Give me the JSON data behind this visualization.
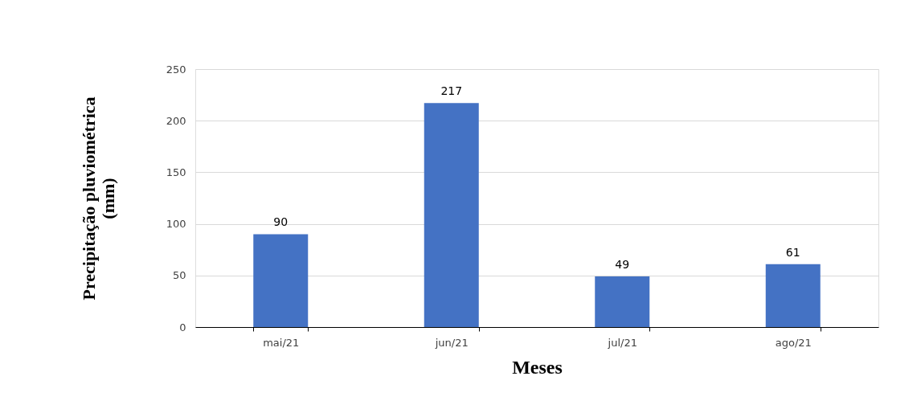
{
  "chart_data": {
    "type": "bar",
    "categories": [
      "mai/21",
      "jun/21",
      "jul/21",
      "ago/21"
    ],
    "values": [
      90,
      217,
      49,
      61
    ],
    "color": "#4472c4",
    "xlabel": "Meses",
    "ylabel": "Precipitação pluviométrica\n(mm)",
    "ylim": [
      0,
      250
    ],
    "yticks": [
      0,
      50,
      100,
      150,
      200,
      250
    ],
    "grid": "y",
    "data_labels": true
  }
}
